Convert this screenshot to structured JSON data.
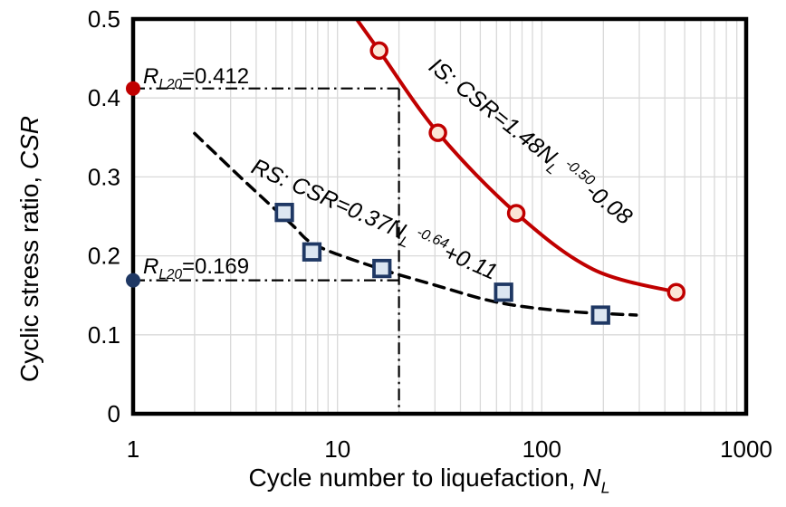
{
  "figure": {
    "background_color": "#FFFFFF",
    "frame_color": "#000000",
    "grid_color": "#D9D9D9",
    "annotation_line_color": "#000000"
  },
  "chart_data": {
    "type": "line",
    "x_scale": "log",
    "xlim": [
      1,
      1000
    ],
    "ylim": [
      0,
      0.5
    ],
    "grid": true,
    "legend_position": "none",
    "xlabel": "Cycle number to liquefaction, NL",
    "ylabel": "Cyclic stress ratio, CSR",
    "xlabel_parts": [
      {
        "text": "Cycle number to liquefaction, ",
        "italic": false
      },
      {
        "text": "N",
        "italic": true
      },
      {
        "text": "L",
        "italic": true,
        "sub": true
      }
    ],
    "ylabel_parts": [
      {
        "text": "Cyclic stress ratio, ",
        "italic": false
      },
      {
        "text": "CSR",
        "italic": true
      }
    ],
    "x_ticks": [
      {
        "value": 1,
        "label": "1"
      },
      {
        "value": 10,
        "label": "10"
      },
      {
        "value": 100,
        "label": "100"
      },
      {
        "value": 1000,
        "label": "1000"
      }
    ],
    "y_ticks": [
      {
        "value": 0,
        "label": "0"
      },
      {
        "value": 0.1,
        "label": "0.1"
      },
      {
        "value": 0.2,
        "label": "0.2"
      },
      {
        "value": 0.3,
        "label": "0.3"
      },
      {
        "value": 0.4,
        "label": "0.4"
      },
      {
        "value": 0.5,
        "label": "0.5"
      }
    ],
    "x_gridlines": [
      2,
      3,
      4,
      5,
      6,
      7,
      8,
      9,
      10,
      20,
      30,
      40,
      50,
      60,
      70,
      80,
      90,
      100,
      200,
      300,
      400,
      500,
      600,
      700,
      800,
      900
    ],
    "y_gridlines": [
      0.1,
      0.2,
      0.3,
      0.4
    ],
    "series": [
      {
        "id": "IS",
        "equation": "IS: CSR=1.48NL^-0.50-0.08",
        "label_parts": [
          {
            "text": "IS: CSR",
            "italic": true
          },
          {
            "text": "=1.48",
            "italic": true
          },
          {
            "text": "N",
            "italic": true
          },
          {
            "text": "L",
            "italic": true,
            "sub": true
          },
          {
            "text": " -0.50",
            "italic": true,
            "sup": true
          },
          {
            "text": "-0.08",
            "italic": true
          }
        ],
        "line": "solid",
        "line_color": "#C00000",
        "line_width": 4,
        "marker": "circle",
        "marker_fill": "#FBE5D6",
        "marker_stroke": "#C00000",
        "points": [
          [
            16,
            0.46
          ],
          [
            31,
            0.356
          ],
          [
            75,
            0.254
          ],
          [
            455,
            0.154
          ]
        ],
        "curve": [
          [
            12.4,
            0.5
          ],
          [
            16,
            0.46
          ],
          [
            31,
            0.356
          ],
          [
            75,
            0.254
          ],
          [
            178,
            0.183
          ],
          [
            455,
            0.154
          ]
        ]
      },
      {
        "id": "RS",
        "equation": "RS: CSR=0.37NL^-0.64+0.11",
        "label_parts": [
          {
            "text": "RS: CSR",
            "italic": true
          },
          {
            "text": "=0.37",
            "italic": true
          },
          {
            "text": "N",
            "italic": true
          },
          {
            "text": "L",
            "italic": true,
            "sub": true
          },
          {
            "text": " -0.64",
            "italic": true,
            "sup": true
          },
          {
            "text": "+0.11",
            "italic": true
          }
        ],
        "line": "dashed",
        "line_color": "#000000",
        "line_width": 3.5,
        "marker": "square",
        "marker_fill": "#DCE6F1",
        "marker_stroke": "#1F3864",
        "points": [
          [
            5.5,
            0.255
          ],
          [
            7.5,
            0.205
          ],
          [
            16.5,
            0.184
          ],
          [
            65,
            0.154
          ],
          [
            194,
            0.125
          ]
        ],
        "curve": [
          [
            2,
            0.355
          ],
          [
            3.5,
            0.295
          ],
          [
            5.9,
            0.241
          ],
          [
            7.9,
            0.213
          ],
          [
            16,
            0.184
          ],
          [
            30,
            0.163
          ],
          [
            61,
            0.141
          ],
          [
            130,
            0.13
          ],
          [
            290,
            0.125
          ]
        ]
      }
    ],
    "annotations": [
      {
        "id": "rl20_is",
        "text": "RL20=0.412",
        "label_parts": [
          {
            "text": "R",
            "italic": true
          },
          {
            "text": "L20",
            "italic": true,
            "sub": true
          },
          {
            "text": "=0.412",
            "italic": false
          }
        ],
        "y_value": 0.412,
        "x_extent": 20,
        "dot_color": "#C00000"
      },
      {
        "id": "rl20_rs",
        "text": "RL20=0.169",
        "label_parts": [
          {
            "text": "R",
            "italic": true
          },
          {
            "text": "L20",
            "italic": true,
            "sub": true
          },
          {
            "text": "=0.169",
            "italic": false
          }
        ],
        "y_value": 0.169,
        "x_extent": 20,
        "dot_color": "#1F3864"
      }
    ],
    "reference_lines": {
      "vertical": {
        "x_value": 20,
        "y_from": 0,
        "y_to": 0.412
      }
    }
  }
}
